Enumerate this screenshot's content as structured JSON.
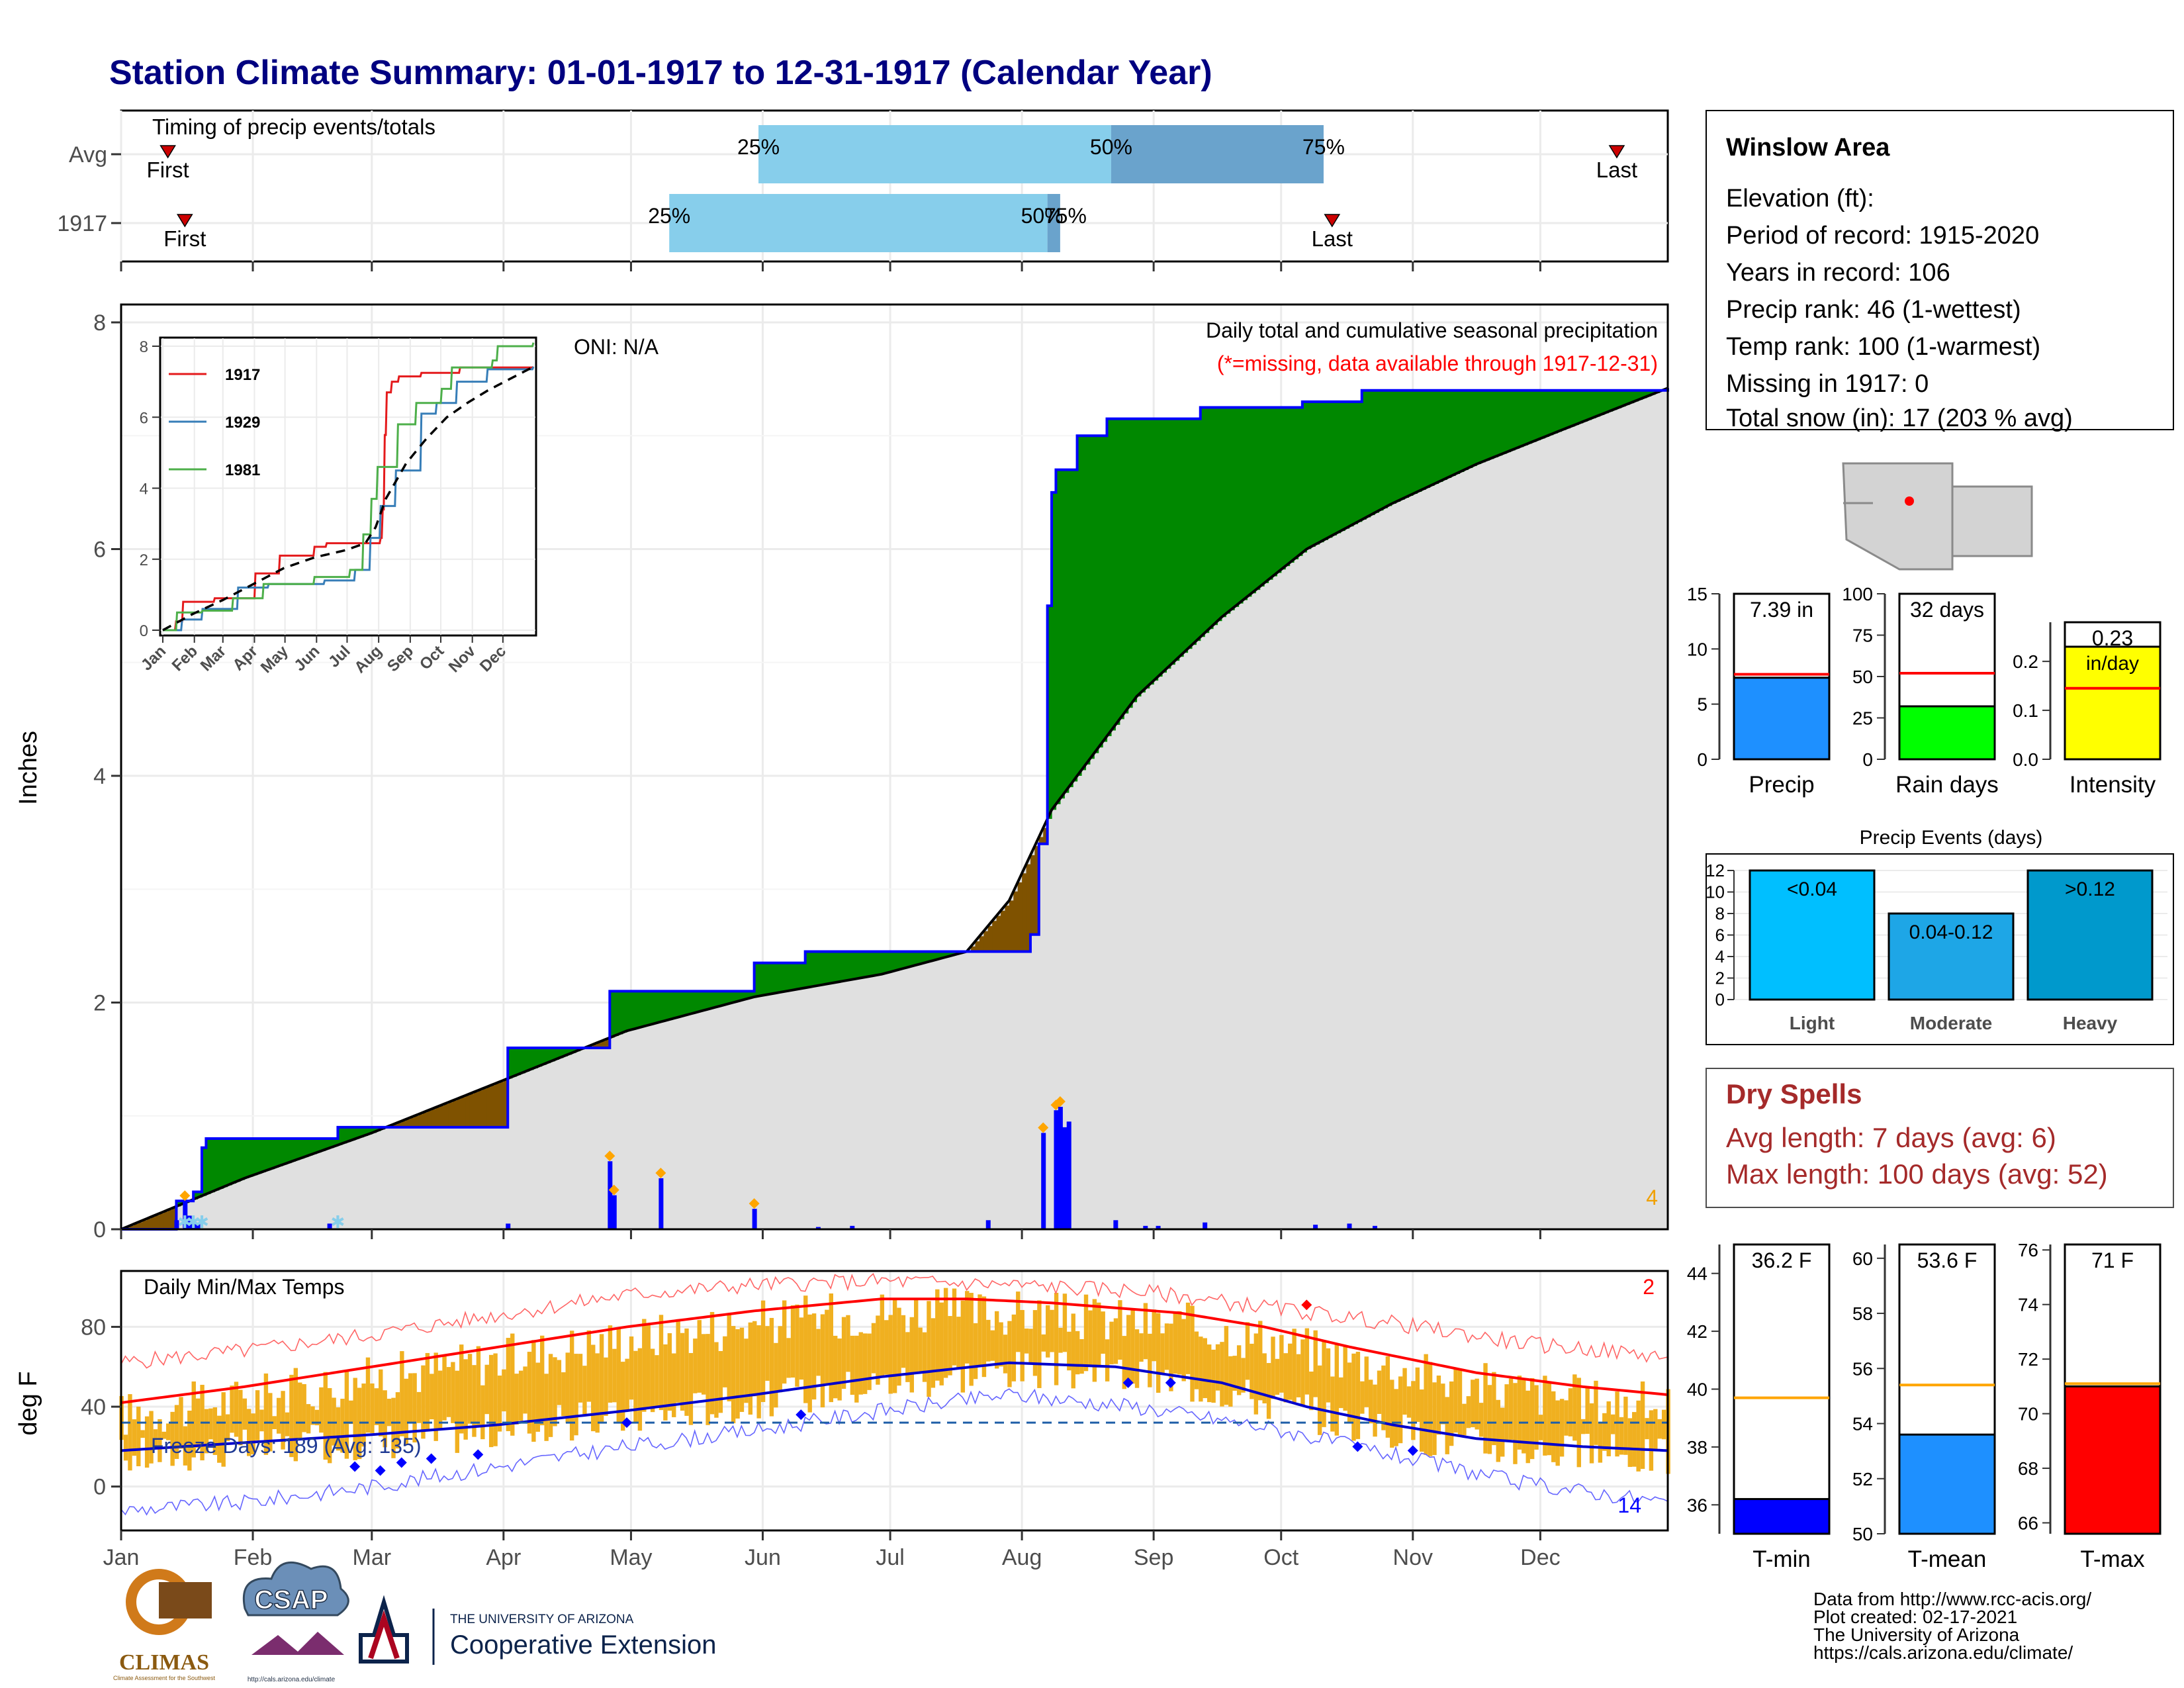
{
  "page": {
    "title": "Station Climate Summary: 01-01-1917 to 12-31-1917 (Calendar Year)"
  },
  "months": [
    "Jan",
    "Feb",
    "Mar",
    "Apr",
    "May",
    "Jun",
    "Jul",
    "Aug",
    "Sep",
    "Oct",
    "Nov",
    "Dec"
  ],
  "timing": {
    "title": "Timing of precip events/totals",
    "rows": [
      {
        "label": "Avg",
        "first_label": "First",
        "last_label": "Last",
        "first_doy": 12,
        "p25": 151,
        "p50": 234,
        "p75": 284,
        "last_doy": 353,
        "p25_label": "25%",
        "p50_label": "50%",
        "p75_label": "75%"
      },
      {
        "label": "1917",
        "first_label": "First",
        "last_label": "Last",
        "first_doy": 16,
        "p25": 130,
        "p50": 219,
        "p75": 222,
        "last_doy": 286,
        "p25_label": "25%",
        "p50_label": "50%",
        "p75_label": "75%"
      }
    ]
  },
  "chart_data": [
    {
      "type": "area",
      "name": "precip-main",
      "ylabel": "Inches",
      "ylim": [
        0,
        8
      ],
      "yticks": [
        0,
        2,
        4,
        6,
        8
      ],
      "subtitle": "Daily total and cumulative seasonal precipitation",
      "note": "(*=missing, data available through 1917-12-31)",
      "oni_label": "ONI: N/A",
      "count_label": "4",
      "cumulative_1917": [
        [
          1,
          0
        ],
        [
          14,
          0.25
        ],
        [
          18,
          0.33
        ],
        [
          20,
          0.72
        ],
        [
          21,
          0.8
        ],
        [
          52,
          0.9
        ],
        [
          92,
          1.6
        ],
        [
          116,
          2.1
        ],
        [
          150,
          2.35
        ],
        [
          162,
          2.45
        ],
        [
          215,
          2.6
        ],
        [
          217,
          3.4
        ],
        [
          219,
          5.5
        ],
        [
          220,
          6.5
        ],
        [
          221,
          6.7
        ],
        [
          226,
          7.0
        ],
        [
          233,
          7.15
        ],
        [
          255,
          7.25
        ],
        [
          279,
          7.3
        ],
        [
          293,
          7.4
        ],
        [
          365,
          7.42
        ]
      ],
      "cumulative_avg": [
        [
          1,
          0
        ],
        [
          30,
          0.45
        ],
        [
          60,
          0.85
        ],
        [
          90,
          1.3
        ],
        [
          120,
          1.75
        ],
        [
          150,
          2.05
        ],
        [
          180,
          2.25
        ],
        [
          200,
          2.45
        ],
        [
          210,
          2.9
        ],
        [
          220,
          3.7
        ],
        [
          240,
          4.7
        ],
        [
          260,
          5.4
        ],
        [
          280,
          6.0
        ],
        [
          300,
          6.4
        ],
        [
          320,
          6.75
        ],
        [
          340,
          7.05
        ],
        [
          365,
          7.42
        ]
      ],
      "daily_precip": [
        [
          14,
          0.08
        ],
        [
          16,
          0.25
        ],
        [
          17,
          0.12
        ],
        [
          18,
          0.06
        ],
        [
          19,
          0.05
        ],
        [
          50,
          0.05
        ],
        [
          92,
          0.05
        ],
        [
          116,
          0.6
        ],
        [
          117,
          0.3
        ],
        [
          128,
          0.45
        ],
        [
          150,
          0.18
        ],
        [
          165,
          0.02
        ],
        [
          173,
          0.03
        ],
        [
          205,
          0.08
        ],
        [
          218,
          0.85
        ],
        [
          221,
          1.05
        ],
        [
          222,
          1.08
        ],
        [
          223,
          0.9
        ],
        [
          224,
          0.95
        ],
        [
          235,
          0.08
        ],
        [
          242,
          0.03
        ],
        [
          245,
          0.03
        ],
        [
          256,
          0.06
        ],
        [
          282,
          0.04
        ],
        [
          290,
          0.05
        ],
        [
          296,
          0.03
        ]
      ]
    },
    {
      "type": "line",
      "name": "precip-inset",
      "ylim": [
        0,
        8
      ],
      "yticks": [
        0,
        2,
        4,
        6,
        8
      ],
      "series": [
        {
          "name": "1917",
          "color": "#e41a1c",
          "points": [
            [
              1,
              0
            ],
            [
              14,
              0.25
            ],
            [
              21,
              0.8
            ],
            [
              52,
              0.9
            ],
            [
              92,
              1.6
            ],
            [
              116,
              2.1
            ],
            [
              150,
              2.35
            ],
            [
              162,
              2.45
            ],
            [
              215,
              2.6
            ],
            [
              217,
              3.4
            ],
            [
              219,
              5.5
            ],
            [
              221,
              6.7
            ],
            [
              226,
              7.0
            ],
            [
              233,
              7.15
            ],
            [
              255,
              7.25
            ],
            [
              293,
              7.4
            ],
            [
              365,
              7.42
            ]
          ]
        },
        {
          "name": "1929",
          "color": "#377eb8",
          "points": [
            [
              1,
              0
            ],
            [
              20,
              0.3
            ],
            [
              40,
              0.6
            ],
            [
              75,
              1.2
            ],
            [
              105,
              1.3
            ],
            [
              160,
              1.4
            ],
            [
              190,
              1.7
            ],
            [
              205,
              2.6
            ],
            [
              215,
              3.5
            ],
            [
              230,
              4.5
            ],
            [
              255,
              6.1
            ],
            [
              270,
              6.4
            ],
            [
              290,
              7.0
            ],
            [
              320,
              7.35
            ],
            [
              365,
              7.42
            ]
          ]
        },
        {
          "name": "1981",
          "color": "#4daf4a",
          "points": [
            [
              1,
              0
            ],
            [
              15,
              0.5
            ],
            [
              40,
              0.55
            ],
            [
              70,
              0.9
            ],
            [
              100,
              1.3
            ],
            [
              150,
              1.5
            ],
            [
              185,
              1.7
            ],
            [
              198,
              2.7
            ],
            [
              206,
              3.7
            ],
            [
              212,
              4.6
            ],
            [
              232,
              5.8
            ],
            [
              250,
              6.4
            ],
            [
              275,
              6.8
            ],
            [
              285,
              7.4
            ],
            [
              325,
              7.6
            ],
            [
              330,
              8.0
            ],
            [
              365,
              8.1
            ]
          ]
        },
        {
          "name": "Avg",
          "color": "#000000",
          "points": [
            [
              1,
              0
            ],
            [
              30,
              0.45
            ],
            [
              60,
              0.85
            ],
            [
              90,
              1.3
            ],
            [
              120,
              1.75
            ],
            [
              150,
              2.05
            ],
            [
              180,
              2.25
            ],
            [
              200,
              2.45
            ],
            [
              210,
              2.9
            ],
            [
              220,
              3.7
            ],
            [
              240,
              4.7
            ],
            [
              260,
              5.4
            ],
            [
              280,
              6.0
            ],
            [
              300,
              6.4
            ],
            [
              320,
              6.75
            ],
            [
              340,
              7.05
            ],
            [
              365,
              7.42
            ]
          ]
        }
      ]
    },
    {
      "type": "bar",
      "name": "temp-daily",
      "title": "Daily Min/Max Temps",
      "ylabel": "deg F",
      "ylim": [
        -22,
        108
      ],
      "yticks": [
        0,
        40,
        80
      ],
      "freeze_label": "Freeze Days: 189 (Avg: 135)",
      "freeze_line_f": 32,
      "hot_count_label": "2",
      "cold_count_label": "14",
      "avg_max": [
        [
          1,
          42
        ],
        [
          30,
          50
        ],
        [
          60,
          60
        ],
        [
          90,
          70
        ],
        [
          120,
          80
        ],
        [
          150,
          88
        ],
        [
          180,
          94
        ],
        [
          200,
          94
        ],
        [
          220,
          92
        ],
        [
          250,
          87
        ],
        [
          270,
          80
        ],
        [
          290,
          70
        ],
        [
          320,
          57
        ],
        [
          345,
          50
        ],
        [
          365,
          46
        ]
      ],
      "avg_min": [
        [
          1,
          18
        ],
        [
          30,
          22
        ],
        [
          60,
          26
        ],
        [
          90,
          31
        ],
        [
          120,
          38
        ],
        [
          150,
          46
        ],
        [
          180,
          55
        ],
        [
          210,
          62
        ],
        [
          235,
          60
        ],
        [
          260,
          52
        ],
        [
          280,
          40
        ],
        [
          300,
          31
        ],
        [
          320,
          24
        ],
        [
          345,
          20
        ],
        [
          365,
          18
        ]
      ],
      "record_max": [
        [
          1,
          62
        ],
        [
          30,
          68
        ],
        [
          60,
          76
        ],
        [
          90,
          86
        ],
        [
          120,
          96
        ],
        [
          150,
          101
        ],
        [
          180,
          103
        ],
        [
          210,
          101
        ],
        [
          240,
          98
        ],
        [
          270,
          90
        ],
        [
          300,
          82
        ],
        [
          330,
          72
        ],
        [
          365,
          65
        ]
      ],
      "record_min": [
        [
          1,
          -12
        ],
        [
          30,
          -8
        ],
        [
          60,
          0
        ],
        [
          90,
          10
        ],
        [
          120,
          20
        ],
        [
          150,
          28
        ],
        [
          180,
          38
        ],
        [
          210,
          46
        ],
        [
          240,
          40
        ],
        [
          270,
          30
        ],
        [
          300,
          16
        ],
        [
          330,
          2
        ],
        [
          365,
          -8
        ]
      ]
    },
    {
      "type": "bar",
      "name": "season-summary-precip",
      "ylim": [
        0,
        15
      ],
      "yticks": [
        0,
        5,
        10,
        15
      ],
      "value": 7.39,
      "avg": 7.7,
      "label": "7.39 in",
      "xlabel": "Precip",
      "color": "#1e90ff"
    },
    {
      "type": "bar",
      "name": "season-summary-raindays",
      "ylim": [
        0,
        100
      ],
      "yticks": [
        0,
        25,
        50,
        75,
        100
      ],
      "value": 32,
      "avg": 52,
      "label": "32 days",
      "xlabel": "Rain days",
      "color": "#00ff00"
    },
    {
      "type": "bar",
      "name": "season-summary-intensity",
      "ylim": [
        0,
        0.28
      ],
      "yticks": [
        0.0,
        0.1,
        0.2
      ],
      "ytick_labels": [
        "0.0",
        "0.1",
        "0.2"
      ],
      "value": 0.23,
      "avg": 0.145,
      "label": "0.23",
      "label2": "in/day",
      "xlabel": "Intensity",
      "color": "#ffff00"
    },
    {
      "type": "bar",
      "name": "precip-events",
      "title": "Precip Events (days)",
      "categories": [
        "Light",
        "Moderate",
        "Heavy"
      ],
      "values": [
        12,
        8,
        12
      ],
      "bar_labels": [
        "<0.04",
        "0.04-0.12",
        ">0.12"
      ],
      "colors": [
        "#00bfff",
        "#1ea6e6",
        "#0099cc"
      ],
      "ylim": [
        0,
        12
      ],
      "yticks": [
        0,
        2,
        4,
        6,
        8,
        10,
        12
      ]
    },
    {
      "type": "bar",
      "name": "temp-summary-tmin",
      "ylim": [
        35,
        45
      ],
      "yticks": [
        36,
        38,
        40,
        42,
        44
      ],
      "value": 36.2,
      "avg": 39.7,
      "label": "36.2 F",
      "xlabel": "T-min",
      "color": "#0000ff"
    },
    {
      "type": "bar",
      "name": "temp-summary-tmean",
      "ylim": [
        50,
        60.5
      ],
      "yticks": [
        50,
        52,
        54,
        56,
        58,
        60
      ],
      "value": 53.6,
      "avg": 55.4,
      "label": "53.6 F",
      "xlabel": "T-mean",
      "color": "#1e90ff"
    },
    {
      "type": "bar",
      "name": "temp-summary-tmax",
      "ylim": [
        65.6,
        76.2
      ],
      "yticks": [
        66,
        68,
        70,
        72,
        74,
        76
      ],
      "value": 71,
      "avg": 71.1,
      "label": "71 F",
      "xlabel": "T-max",
      "color": "#ff0000"
    }
  ],
  "station": {
    "name": "Winslow Area",
    "lines": [
      "Elevation (ft):",
      "Period of record: 1915-2020",
      "Years in record: 106",
      "Precip rank: 46 (1-wettest)",
      "Temp rank: 100 (1-warmest)",
      "Missing in 1917: 0",
      "Total snow (in): 17 (203 % avg)"
    ]
  },
  "dry_spells": {
    "title": "Dry Spells",
    "avg": "Avg length: 7 days (avg: 6)",
    "max": "Max length: 100 days (avg: 52)"
  },
  "footer": {
    "credits": [
      "Data from http://www.rcc-acis.org/",
      "Plot created: 02-17-2021",
      "The University of Arizona",
      "https://cals.arizona.edu/climate/"
    ],
    "logos": {
      "climas": "CLIMAS",
      "climas_sub": "Climate Assessment for the Southwest",
      "csap": "CSAP",
      "csap_url": "http://cals.arizona.edu/climate",
      "ua_line1": "THE UNIVERSITY OF ARIZONA",
      "ua_line2": "Cooperative Extension"
    }
  },
  "colors": {
    "title": "#000080",
    "green_fill": "#008800",
    "brown_fill": "#7f5200",
    "gray_fill": "#e0e0e0",
    "blue_line": "#0000ff",
    "orange": "#f0b020",
    "red": "#ff0000",
    "dry_red": "#a52a2a",
    "timing_light": "#87ceeb",
    "timing_dark": "#6aa3cc"
  }
}
